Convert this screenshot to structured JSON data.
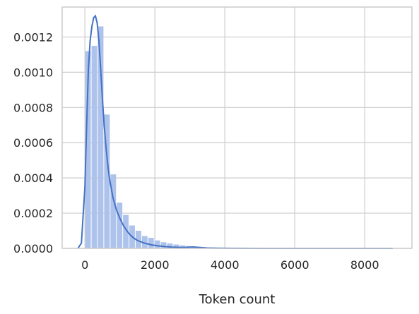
{
  "chart_data": {
    "type": "histogram-kde",
    "title": "",
    "xlabel": "Token count",
    "ylabel": "",
    "xlim": [
      -650,
      9350
    ],
    "ylim": [
      0,
      0.00137
    ],
    "x_ticks": [
      0,
      2000,
      4000,
      6000,
      8000
    ],
    "x_tick_labels": [
      "0",
      "2000",
      "4000",
      "6000",
      "8000"
    ],
    "y_ticks": [
      0.0,
      0.0002,
      0.0004,
      0.0006,
      0.0008,
      0.001,
      0.0012
    ],
    "y_tick_labels": [
      "0.0000",
      "0.0002",
      "0.0004",
      "0.0006",
      "0.0008",
      "0.0010",
      "0.0012"
    ],
    "grid": true,
    "histogram": {
      "bin_edges_start": 0,
      "bin_width": 180,
      "counts_density": [
        0.00112,
        0.00115,
        0.00126,
        0.00076,
        0.00042,
        0.00026,
        0.00019,
        0.00013,
        0.0001,
        7e-05,
        6e-05,
        4.5e-05,
        3.5e-05,
        2.8e-05,
        2.2e-05,
        1.7e-05,
        1.3e-05,
        1e-05,
        8e-06,
        6.5e-06,
        5.5e-06,
        4.5e-06,
        4e-06,
        3.5e-06,
        3e-06,
        2e-06,
        1.5e-06,
        1.2e-06,
        1e-06,
        8e-07,
        6e-07,
        5e-07,
        4e-07,
        3e-07,
        3e-07,
        2e-07,
        2e-07,
        2e-07,
        1e-07,
        1e-07,
        1e-07,
        1e-07,
        1e-07,
        1e-07,
        1e-07,
        1e-07,
        1e-07,
        1e-07,
        1e-07,
        1e-07
      ]
    },
    "kde": {
      "x": [
        -200,
        -100,
        0,
        50,
        100,
        150,
        200,
        250,
        300,
        350,
        400,
        450,
        500,
        550,
        600,
        650,
        700,
        800,
        900,
        1000,
        1100,
        1200,
        1300,
        1400,
        1500,
        1700,
        1900,
        2100,
        2300,
        2500,
        2800,
        3100,
        3300,
        3500,
        3800,
        4200,
        5000,
        6000,
        7000,
        8000,
        8800
      ],
      "y": [
        0.0,
        3e-05,
        0.00035,
        0.0007,
        0.00102,
        0.00118,
        0.00126,
        0.00131,
        0.00132,
        0.00128,
        0.00118,
        0.00102,
        0.00085,
        0.0007,
        0.00058,
        0.00048,
        0.0004,
        0.00029,
        0.00022,
        0.00017,
        0.00013,
        0.0001,
        7.5e-05,
        5.8e-05,
        4.5e-05,
        3e-05,
        2e-05,
        1.4e-05,
        1e-05,
        7e-06,
        5e-06,
        8e-06,
        5e-06,
        2e-06,
        1e-06,
        5e-07,
        2e-07,
        1e-07,
        1e-07,
        1e-07,
        0.0
      ]
    },
    "colors": {
      "bar_fill": "#aec3ec",
      "line": "#4472c4",
      "grid": "#cccccc",
      "tick_text": "#262626"
    }
  }
}
